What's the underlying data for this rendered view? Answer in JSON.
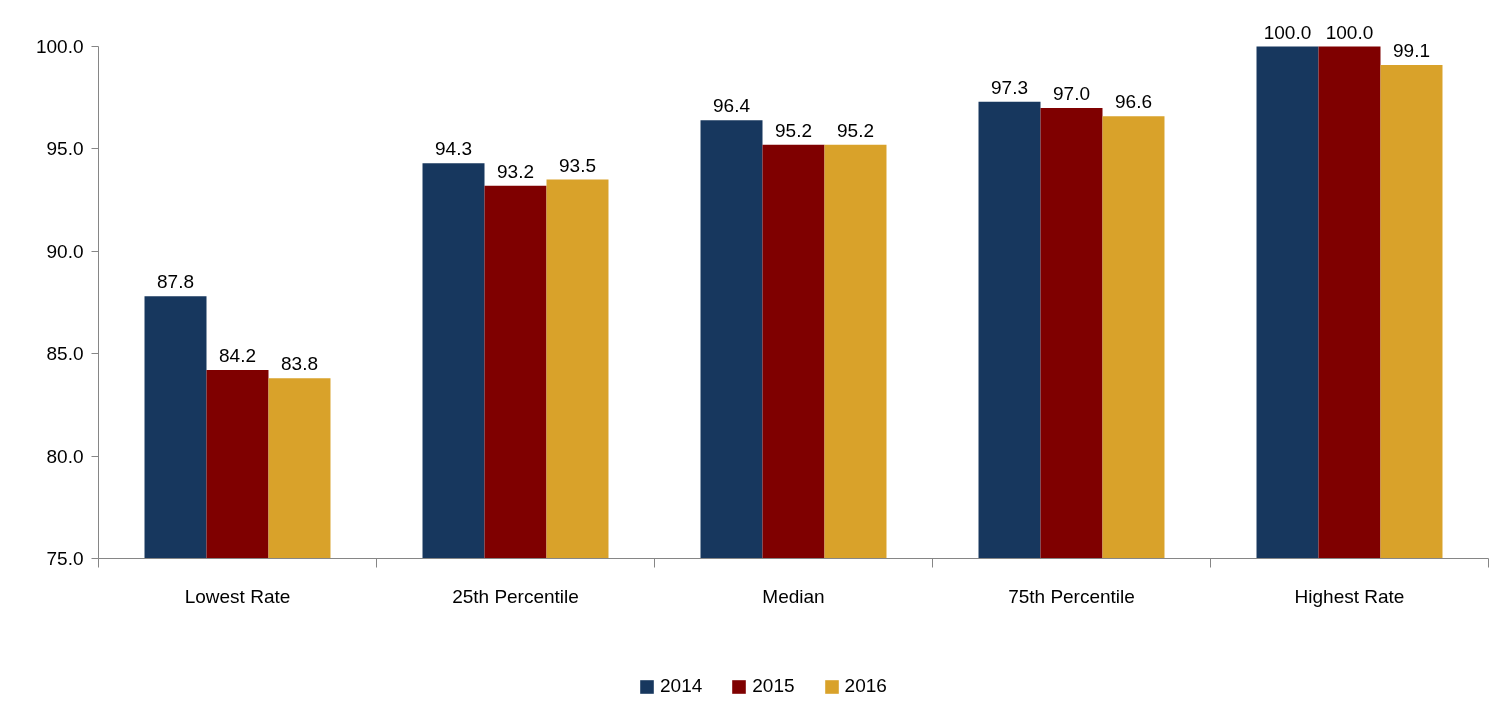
{
  "chart_data": {
    "type": "bar",
    "categories": [
      "Lowest Rate",
      "25th Percentile",
      "Median",
      "75th Percentile",
      "Highest Rate"
    ],
    "series": [
      {
        "name": "2014",
        "color": "#17375e",
        "values": [
          87.8,
          94.3,
          96.4,
          97.3,
          100.0
        ],
        "value_labels": [
          "87.8",
          "94.3",
          "96.4",
          "97.3",
          "100.0"
        ]
      },
      {
        "name": "2015",
        "color": "#7f0000",
        "values": [
          84.2,
          93.2,
          95.2,
          97.0,
          100.0
        ],
        "value_labels": [
          "84.2",
          "93.2",
          "95.2",
          "97.0",
          "100.0"
        ]
      },
      {
        "name": "2016",
        "color": "#d9a22a",
        "values": [
          83.8,
          93.5,
          95.2,
          96.6,
          99.1
        ],
        "value_labels": [
          "83.8",
          "93.5",
          "95.2",
          "96.6",
          "99.1"
        ]
      }
    ],
    "ylim": [
      75,
      100
    ],
    "yticks": [
      {
        "value": 75,
        "label": "75.0"
      },
      {
        "value": 80,
        "label": "80.0"
      },
      {
        "value": 85,
        "label": "85.0"
      },
      {
        "value": 90,
        "label": "90.0"
      },
      {
        "value": 95,
        "label": "95.0"
      },
      {
        "value": 100,
        "label": "100.0"
      }
    ],
    "grid": false,
    "legend": "bottom"
  }
}
